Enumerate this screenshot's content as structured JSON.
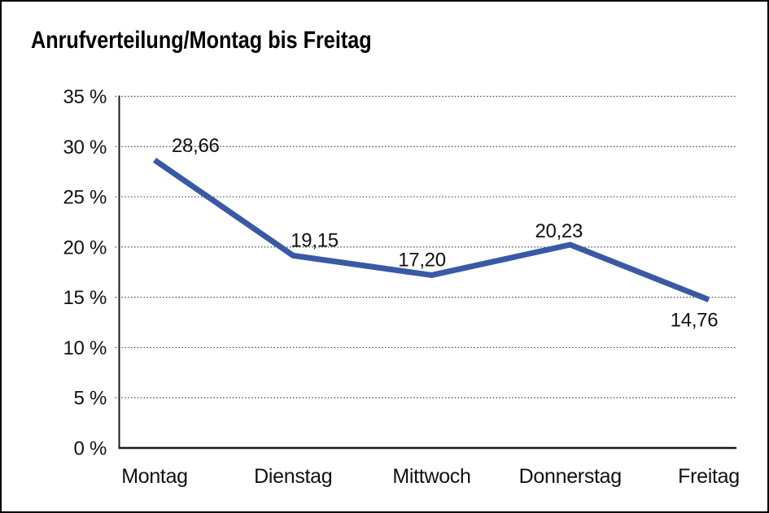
{
  "chart_data": {
    "type": "line",
    "title": "Anrufverteilung/Montag bis Freitag",
    "categories": [
      "Montag",
      "Dienstag",
      "Mittwoch",
      "Donnerstag",
      "Freitag"
    ],
    "values": [
      28.66,
      19.15,
      17.2,
      20.23,
      14.76
    ],
    "value_labels": [
      "28,66",
      "19,15",
      "17,20",
      "20,23",
      "14,76"
    ],
    "xlabel": "",
    "ylabel": "",
    "ylim": [
      0,
      35
    ],
    "ytick_step": 5,
    "ytick_labels": [
      "0 %",
      "5 %",
      "10 %",
      "15 %",
      "20 %",
      "25 %",
      "30 %",
      "35 %"
    ],
    "grid": "horizontal-dotted",
    "legend": "none",
    "line_color": "#3A59A5",
    "axis_color": "#1a1a1a",
    "grid_color": "#444444",
    "text_color": "#111111"
  }
}
